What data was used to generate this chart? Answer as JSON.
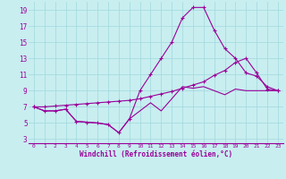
{
  "title": "",
  "xlabel": "Windchill (Refroidissement éolien,°C)",
  "bg_color": "#c8eef0",
  "line_color": "#990099",
  "grid_color": "#a0d8dc",
  "xlim": [
    -0.5,
    23.5
  ],
  "ylim": [
    2.5,
    20.0
  ],
  "yticks": [
    3,
    5,
    7,
    9,
    11,
    13,
    15,
    17,
    19
  ],
  "xticks": [
    0,
    1,
    2,
    3,
    4,
    5,
    6,
    7,
    8,
    9,
    10,
    11,
    12,
    13,
    14,
    15,
    16,
    17,
    18,
    19,
    20,
    21,
    22,
    23
  ],
  "series1_x": [
    0,
    1,
    2,
    3,
    4,
    5,
    6,
    7,
    8,
    9,
    10,
    11,
    12,
    13,
    14,
    15,
    16,
    17,
    18,
    19,
    20,
    21,
    22,
    23
  ],
  "series1_y": [
    7.0,
    6.5,
    6.5,
    6.7,
    5.2,
    5.1,
    5.0,
    4.8,
    3.8,
    5.5,
    6.5,
    7.5,
    6.5,
    8.0,
    9.5,
    9.3,
    9.5,
    9.0,
    8.5,
    9.2,
    9.0,
    9.0,
    9.0,
    9.0
  ],
  "series2_x": [
    0,
    1,
    2,
    3,
    4,
    5,
    6,
    7,
    8,
    9,
    10,
    11,
    12,
    13,
    14,
    15,
    16,
    17,
    18,
    19,
    20,
    21,
    22,
    23
  ],
  "series2_y": [
    7.0,
    6.5,
    6.5,
    6.7,
    5.2,
    5.1,
    5.0,
    4.8,
    3.8,
    5.5,
    9.0,
    11.0,
    13.0,
    15.0,
    18.0,
    19.3,
    19.3,
    16.5,
    14.2,
    13.0,
    11.2,
    10.8,
    9.5,
    9.0
  ],
  "series3_x": [
    0,
    1,
    2,
    3,
    4,
    5,
    6,
    7,
    8,
    9,
    10,
    11,
    12,
    13,
    14,
    15,
    16,
    17,
    18,
    19,
    20,
    21,
    22,
    23
  ],
  "series3_y": [
    7.0,
    7.0,
    7.1,
    7.2,
    7.3,
    7.4,
    7.5,
    7.6,
    7.7,
    7.8,
    8.0,
    8.3,
    8.6,
    8.9,
    9.3,
    9.7,
    10.1,
    10.9,
    11.5,
    12.5,
    13.0,
    11.2,
    9.2,
    9.0
  ]
}
